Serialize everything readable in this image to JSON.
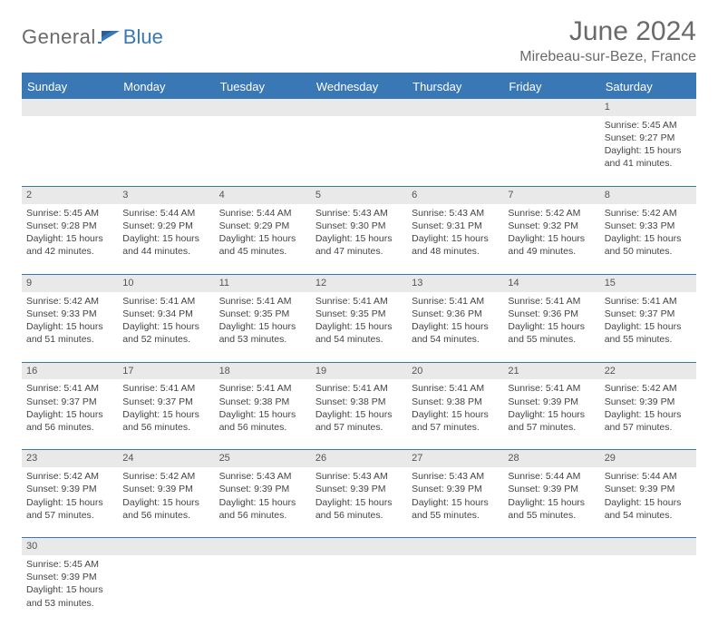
{
  "logo": {
    "text1": "General",
    "text2": "Blue",
    "brand_color": "#3a78b5",
    "gray": "#6a6a6a"
  },
  "header": {
    "title": "June 2024",
    "location": "Mirebeau-sur-Beze, France"
  },
  "colors": {
    "header_bg": "#3a78b5",
    "band_bg": "#e9e9e9",
    "text": "#444"
  },
  "weekdays": [
    "Sunday",
    "Monday",
    "Tuesday",
    "Wednesday",
    "Thursday",
    "Friday",
    "Saturday"
  ],
  "weeks": [
    {
      "days": [
        null,
        null,
        null,
        null,
        null,
        null,
        {
          "n": "1",
          "sunrise": "Sunrise: 5:45 AM",
          "sunset": "Sunset: 9:27 PM",
          "daylight1": "Daylight: 15 hours",
          "daylight2": "and 41 minutes."
        }
      ]
    },
    {
      "days": [
        {
          "n": "2",
          "sunrise": "Sunrise: 5:45 AM",
          "sunset": "Sunset: 9:28 PM",
          "daylight1": "Daylight: 15 hours",
          "daylight2": "and 42 minutes."
        },
        {
          "n": "3",
          "sunrise": "Sunrise: 5:44 AM",
          "sunset": "Sunset: 9:29 PM",
          "daylight1": "Daylight: 15 hours",
          "daylight2": "and 44 minutes."
        },
        {
          "n": "4",
          "sunrise": "Sunrise: 5:44 AM",
          "sunset": "Sunset: 9:29 PM",
          "daylight1": "Daylight: 15 hours",
          "daylight2": "and 45 minutes."
        },
        {
          "n": "5",
          "sunrise": "Sunrise: 5:43 AM",
          "sunset": "Sunset: 9:30 PM",
          "daylight1": "Daylight: 15 hours",
          "daylight2": "and 47 minutes."
        },
        {
          "n": "6",
          "sunrise": "Sunrise: 5:43 AM",
          "sunset": "Sunset: 9:31 PM",
          "daylight1": "Daylight: 15 hours",
          "daylight2": "and 48 minutes."
        },
        {
          "n": "7",
          "sunrise": "Sunrise: 5:42 AM",
          "sunset": "Sunset: 9:32 PM",
          "daylight1": "Daylight: 15 hours",
          "daylight2": "and 49 minutes."
        },
        {
          "n": "8",
          "sunrise": "Sunrise: 5:42 AM",
          "sunset": "Sunset: 9:33 PM",
          "daylight1": "Daylight: 15 hours",
          "daylight2": "and 50 minutes."
        }
      ]
    },
    {
      "days": [
        {
          "n": "9",
          "sunrise": "Sunrise: 5:42 AM",
          "sunset": "Sunset: 9:33 PM",
          "daylight1": "Daylight: 15 hours",
          "daylight2": "and 51 minutes."
        },
        {
          "n": "10",
          "sunrise": "Sunrise: 5:41 AM",
          "sunset": "Sunset: 9:34 PM",
          "daylight1": "Daylight: 15 hours",
          "daylight2": "and 52 minutes."
        },
        {
          "n": "11",
          "sunrise": "Sunrise: 5:41 AM",
          "sunset": "Sunset: 9:35 PM",
          "daylight1": "Daylight: 15 hours",
          "daylight2": "and 53 minutes."
        },
        {
          "n": "12",
          "sunrise": "Sunrise: 5:41 AM",
          "sunset": "Sunset: 9:35 PM",
          "daylight1": "Daylight: 15 hours",
          "daylight2": "and 54 minutes."
        },
        {
          "n": "13",
          "sunrise": "Sunrise: 5:41 AM",
          "sunset": "Sunset: 9:36 PM",
          "daylight1": "Daylight: 15 hours",
          "daylight2": "and 54 minutes."
        },
        {
          "n": "14",
          "sunrise": "Sunrise: 5:41 AM",
          "sunset": "Sunset: 9:36 PM",
          "daylight1": "Daylight: 15 hours",
          "daylight2": "and 55 minutes."
        },
        {
          "n": "15",
          "sunrise": "Sunrise: 5:41 AM",
          "sunset": "Sunset: 9:37 PM",
          "daylight1": "Daylight: 15 hours",
          "daylight2": "and 55 minutes."
        }
      ]
    },
    {
      "days": [
        {
          "n": "16",
          "sunrise": "Sunrise: 5:41 AM",
          "sunset": "Sunset: 9:37 PM",
          "daylight1": "Daylight: 15 hours",
          "daylight2": "and 56 minutes."
        },
        {
          "n": "17",
          "sunrise": "Sunrise: 5:41 AM",
          "sunset": "Sunset: 9:37 PM",
          "daylight1": "Daylight: 15 hours",
          "daylight2": "and 56 minutes."
        },
        {
          "n": "18",
          "sunrise": "Sunrise: 5:41 AM",
          "sunset": "Sunset: 9:38 PM",
          "daylight1": "Daylight: 15 hours",
          "daylight2": "and 56 minutes."
        },
        {
          "n": "19",
          "sunrise": "Sunrise: 5:41 AM",
          "sunset": "Sunset: 9:38 PM",
          "daylight1": "Daylight: 15 hours",
          "daylight2": "and 57 minutes."
        },
        {
          "n": "20",
          "sunrise": "Sunrise: 5:41 AM",
          "sunset": "Sunset: 9:38 PM",
          "daylight1": "Daylight: 15 hours",
          "daylight2": "and 57 minutes."
        },
        {
          "n": "21",
          "sunrise": "Sunrise: 5:41 AM",
          "sunset": "Sunset: 9:39 PM",
          "daylight1": "Daylight: 15 hours",
          "daylight2": "and 57 minutes."
        },
        {
          "n": "22",
          "sunrise": "Sunrise: 5:42 AM",
          "sunset": "Sunset: 9:39 PM",
          "daylight1": "Daylight: 15 hours",
          "daylight2": "and 57 minutes."
        }
      ]
    },
    {
      "days": [
        {
          "n": "23",
          "sunrise": "Sunrise: 5:42 AM",
          "sunset": "Sunset: 9:39 PM",
          "daylight1": "Daylight: 15 hours",
          "daylight2": "and 57 minutes."
        },
        {
          "n": "24",
          "sunrise": "Sunrise: 5:42 AM",
          "sunset": "Sunset: 9:39 PM",
          "daylight1": "Daylight: 15 hours",
          "daylight2": "and 56 minutes."
        },
        {
          "n": "25",
          "sunrise": "Sunrise: 5:43 AM",
          "sunset": "Sunset: 9:39 PM",
          "daylight1": "Daylight: 15 hours",
          "daylight2": "and 56 minutes."
        },
        {
          "n": "26",
          "sunrise": "Sunrise: 5:43 AM",
          "sunset": "Sunset: 9:39 PM",
          "daylight1": "Daylight: 15 hours",
          "daylight2": "and 56 minutes."
        },
        {
          "n": "27",
          "sunrise": "Sunrise: 5:43 AM",
          "sunset": "Sunset: 9:39 PM",
          "daylight1": "Daylight: 15 hours",
          "daylight2": "and 55 minutes."
        },
        {
          "n": "28",
          "sunrise": "Sunrise: 5:44 AM",
          "sunset": "Sunset: 9:39 PM",
          "daylight1": "Daylight: 15 hours",
          "daylight2": "and 55 minutes."
        },
        {
          "n": "29",
          "sunrise": "Sunrise: 5:44 AM",
          "sunset": "Sunset: 9:39 PM",
          "daylight1": "Daylight: 15 hours",
          "daylight2": "and 54 minutes."
        }
      ]
    },
    {
      "days": [
        {
          "n": "30",
          "sunrise": "Sunrise: 5:45 AM",
          "sunset": "Sunset: 9:39 PM",
          "daylight1": "Daylight: 15 hours",
          "daylight2": "and 53 minutes."
        },
        null,
        null,
        null,
        null,
        null,
        null
      ]
    }
  ]
}
